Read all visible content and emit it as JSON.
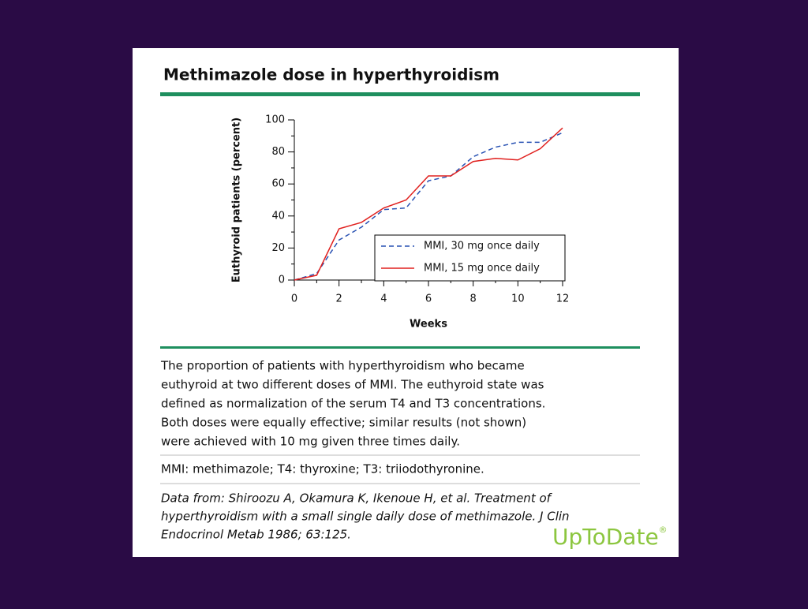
{
  "chart_data": {
    "type": "line",
    "title": "Methimazole dose in hyperthyroidism",
    "x": [
      0,
      1,
      2,
      3,
      4,
      5,
      6,
      7,
      8,
      9,
      10,
      11,
      12
    ],
    "series": [
      {
        "name": "MMI, 30 mg once daily",
        "color": "#2952b3",
        "dash": true,
        "values": [
          0,
          4,
          25,
          33,
          44,
          45,
          62,
          65,
          77,
          83,
          86,
          86,
          92
        ]
      },
      {
        "name": "MMI, 15 mg once daily",
        "color": "#e0201e",
        "dash": false,
        "values": [
          0,
          3,
          32,
          36,
          45,
          50,
          65,
          65,
          74,
          76,
          75,
          82,
          95
        ]
      }
    ],
    "xlabel": "Weeks",
    "ylabel": "Euthyroid patients (percent)",
    "xlim": [
      0,
      12
    ],
    "xticks": [
      0,
      2,
      4,
      6,
      8,
      10,
      12
    ],
    "xminorticks": [
      1,
      3,
      5,
      7,
      9,
      11
    ],
    "ylim": [
      0,
      100
    ],
    "yticks": [
      0,
      20,
      40,
      60,
      80,
      100
    ],
    "yminorticks": [
      10,
      30,
      50,
      70,
      90
    ],
    "legend": "lower right"
  },
  "caption": [
    "The proportion of patients with hyperthyroidism who became",
    "euthyroid at two different doses of MMI. The euthyroid state was",
    "defined as normalization of the serum T4 and T3 concentrations.",
    "Both doses were equally effective; similar results (not shown)",
    "were achieved with 10 mg given three times daily."
  ],
  "abbreviations": "MMI: methimazole; T4: thyroxine; T3: triiodothyronine.",
  "citation": [
    "Data from: Shiroozu A, Okamura K, Ikenoue H, et al. Treatment of",
    "hyperthyroidism with a small single daily dose of methimazole. J Clin",
    "Endocrinol Metab 1986; 63:125."
  ],
  "logo": "UpToDate",
  "logo_mark": "®"
}
